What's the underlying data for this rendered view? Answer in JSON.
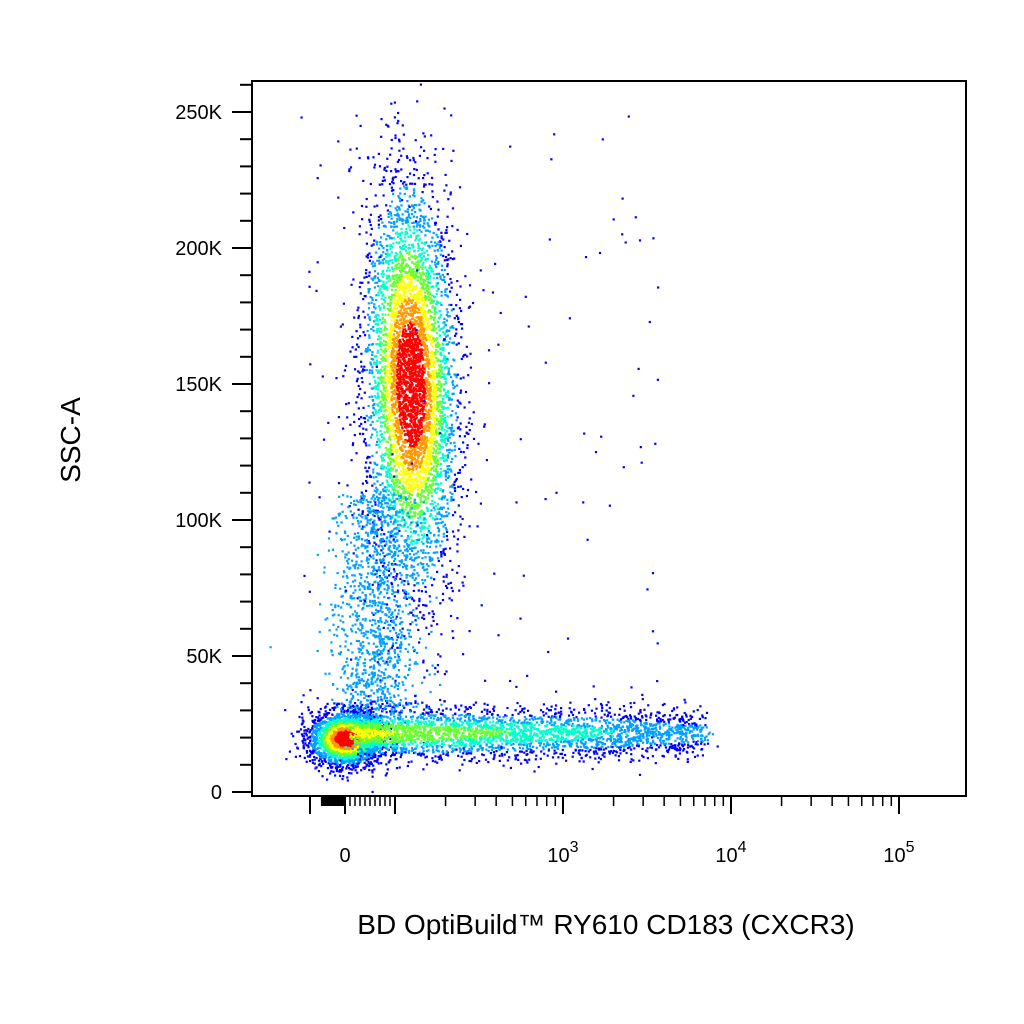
{
  "chart_data": {
    "type": "scatter",
    "subtype": "flow-cytometry pseudocolor density dot plot",
    "xlabel": "BD OptiBuild™ RY610 CD183 (CXCR3)",
    "ylabel": "SSC-A",
    "x_scale": "biexponential",
    "y_scale": "linear",
    "xlim": [
      -300,
      200000
    ],
    "ylim": [
      0,
      262144
    ],
    "x_ticks": [
      {
        "label": "0",
        "value": 0
      },
      {
        "label": "10",
        "sup": "3",
        "value": 1000
      },
      {
        "label": "10",
        "sup": "4",
        "value": 10000
      },
      {
        "label": "10",
        "sup": "5",
        "value": 100000
      }
    ],
    "y_ticks": [
      {
        "label": "0",
        "value": 0
      },
      {
        "label": "50K",
        "value": 50000
      },
      {
        "label": "100K",
        "value": 100000
      },
      {
        "label": "150K",
        "value": 150000
      },
      {
        "label": "200K",
        "value": 200000
      },
      {
        "label": "250K",
        "value": 250000
      }
    ],
    "populations": [
      {
        "name": "CXCR3- high-SSC population",
        "x_center": 150,
        "y_center": 150000,
        "y_range": [
          95000,
          255000
        ],
        "peak_density": "red"
      },
      {
        "name": "CXCR3- low-SSC population",
        "x_center": 0,
        "y_center": 20000,
        "y_range": [
          8000,
          35000
        ],
        "peak_density": "red"
      },
      {
        "name": "CXCR3+ low-SSC population",
        "x_range": [
          100,
          5000
        ],
        "y_center": 22000,
        "peak_density": "cyan"
      }
    ],
    "density_colors": [
      "#0000ff",
      "#00a0ff",
      "#00ffcc",
      "#66ff33",
      "#ffff00",
      "#ff9900",
      "#ff0000"
    ],
    "grid": false
  }
}
